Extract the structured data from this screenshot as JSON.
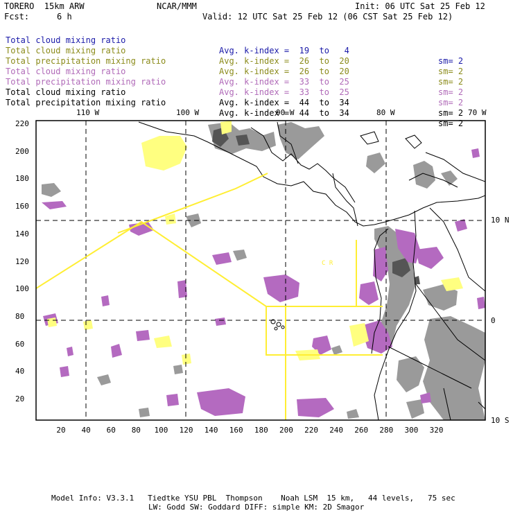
{
  "header": {
    "model": "TORERO  15km ARW",
    "center": "NCAR/MMM",
    "init": "Init: 06 UTC Sat 25 Feb 12",
    "fcst_label": "Fcst:",
    "fcst_value": "6 h",
    "valid": "Valid: 12 UTC Sat 25 Feb 12 (06 CST Sat 25 Feb 12)"
  },
  "legend": [
    {
      "field": "Total cloud mixing ratio",
      "kindex": "Avg. k-index =  19  to   4",
      "sm": "sm= 2",
      "color": "#1a1aa8"
    },
    {
      "field": "Total cloud mixing ratio",
      "kindex": "Avg. k-index =  26  to  20",
      "sm": "sm= 2",
      "color": "#8b8b1a"
    },
    {
      "field": "Total precipitation mixing ratio",
      "kindex": "Avg. k-index =  26  to  20",
      "sm": "sm= 2",
      "color": "#8b8b1a"
    },
    {
      "field": "Total cloud mixing ratio",
      "kindex": "Avg. k-index =  33  to  25",
      "sm": "sm= 2",
      "color": "#b06ab8"
    },
    {
      "field": "Total precipitation mixing ratio",
      "kindex": "Avg. k-index =  33  to  25",
      "sm": "sm= 2",
      "color": "#b06ab8"
    },
    {
      "field": "Total cloud mixing ratio",
      "kindex": "Avg. k-index =  44  to  34",
      "sm": "sm= 2",
      "color": "#000000"
    },
    {
      "field": "Total precipitation mixing ratio",
      "kindex": "Avg. k-index =  44  to  34",
      "sm": "sm= 2",
      "color": "#000000"
    }
  ],
  "map": {
    "lon_labels": [
      "110 W",
      "100 W",
      "90 W",
      "80 W",
      "70 W"
    ],
    "lat_labels": [
      "10 N",
      "0",
      "10 S"
    ],
    "x_ticks": [
      "20",
      "40",
      "60",
      "80",
      "100",
      "120",
      "140",
      "160",
      "180",
      "200",
      "220",
      "240",
      "260",
      "280",
      "300",
      "320"
    ],
    "y_ticks": [
      "220",
      "200",
      "180",
      "160",
      "140",
      "120",
      "100",
      "80",
      "60",
      "40",
      "20"
    ],
    "region_label": "C R",
    "colors": {
      "cloud_gray": "#9a9a9a",
      "dark_gray": "#5a5a5a",
      "purple": "#b46ac0",
      "yellow": "#ffff80",
      "boundary_yellow": "#ffee33",
      "coast": "#000000"
    }
  },
  "footer": {
    "line1": "Model Info: V3.3.1   Tiedtke YSU PBL  Thompson    Noah LSM  15 km,   44 levels,   75 sec",
    "line2": "LW: Godd SW: Goddard DIFF: simple KM: 2D Smagor"
  }
}
